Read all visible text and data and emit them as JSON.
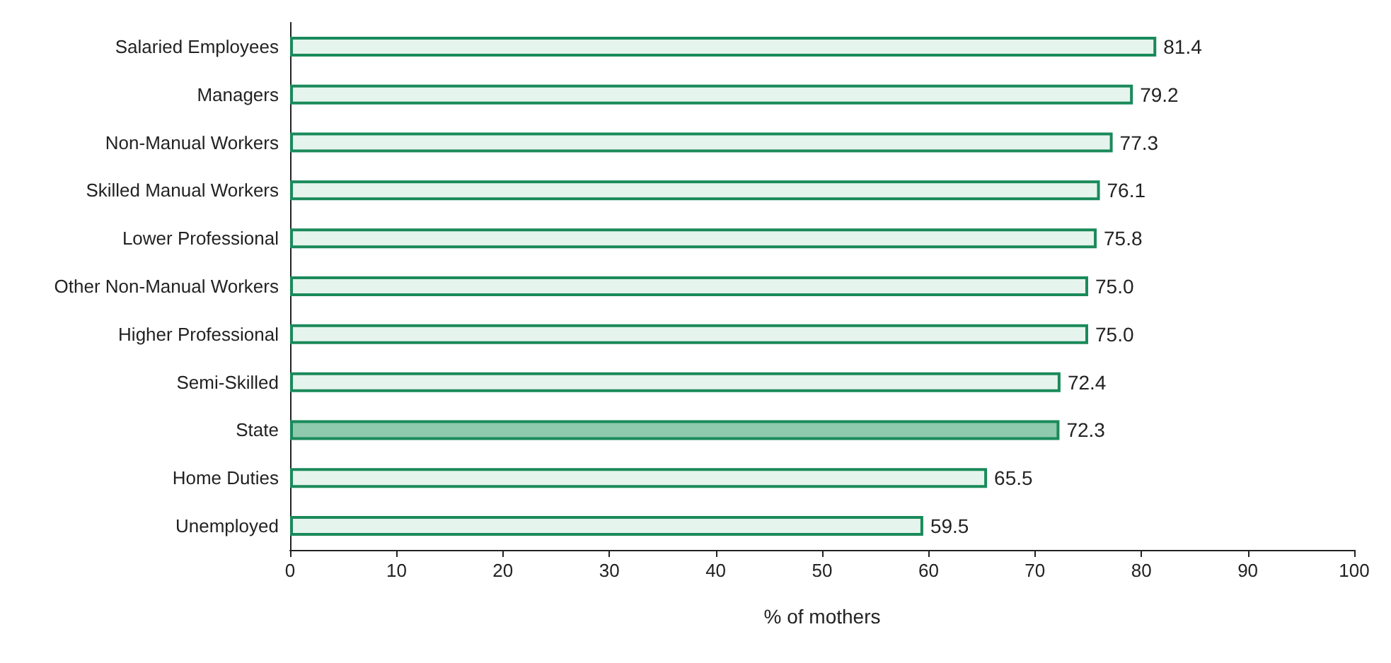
{
  "chart_data": {
    "type": "bar",
    "orientation": "horizontal",
    "xlabel": "% of mothers",
    "categories": [
      "Salaried Employees",
      "Managers",
      "Non-Manual Workers",
      "Skilled Manual Workers",
      "Lower Professional",
      "Other Non-Manual Workers",
      "Higher Professional",
      "Semi-Skilled",
      "State",
      "Home Duties",
      "Unemployed"
    ],
    "values": [
      81.4,
      79.2,
      77.3,
      76.1,
      75.8,
      75.0,
      75.0,
      72.4,
      72.3,
      65.5,
      59.5
    ],
    "value_labels": [
      "81.4",
      "79.2",
      "77.3",
      "76.1",
      "75.8",
      "75.0",
      "75.0",
      "72.4",
      "72.3",
      "65.5",
      "59.5"
    ],
    "colors": [
      "#e6f4ee",
      "#e6f4ee",
      "#e6f4ee",
      "#e6f4ee",
      "#e6f4ee",
      "#e6f4ee",
      "#e6f4ee",
      "#e6f4ee",
      "#8fc9ae",
      "#e6f4ee",
      "#e6f4ee"
    ],
    "xlim": [
      0,
      100
    ],
    "xticks": [
      0,
      10,
      20,
      30,
      40,
      50,
      60,
      70,
      80,
      90,
      100
    ]
  }
}
